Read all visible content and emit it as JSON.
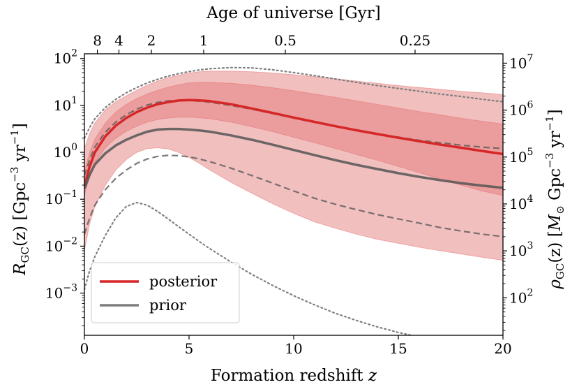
{
  "chart_data": {
    "type": "line",
    "title": "",
    "xlabel": "Formation redshift ",
    "xlabel_italic": "z",
    "x_top_label": "Age of universe [Gyr]",
    "ylabel_main": "(z) [Gpc",
    "ylabel_sym": "R",
    "ylabel_sub": "GC",
    "ylabel_exp": "−3",
    "ylabel_tail": " yr",
    "ylabel_tail_exp": "−1",
    "ylabel_close": "]",
    "y2label_sym": "ρ",
    "y2label_sub": "GC",
    "y2label_main": "(z) [",
    "y2label_msun": "M",
    "y2label_sun_sub": "⊙",
    "y2label_unit": " Gpc",
    "y2label_exp": "−3",
    "y2label_tail": " yr",
    "y2label_tail_exp": "−1",
    "y2label_close": "]",
    "xlim": [
      0,
      20
    ],
    "ylim_log10": [
      -3.9,
      2.1
    ],
    "y2_offset_log10": 5.1,
    "x_ticks": [
      0,
      5,
      10,
      15,
      20
    ],
    "x_tick_labels": [
      "0",
      "5",
      "10",
      "15",
      "20"
    ],
    "y_ticks_exp": [
      -3,
      -2,
      -1,
      0,
      1,
      2
    ],
    "y_tick_base": "10",
    "y_tick_exps": [
      "−3",
      "−2",
      "−1",
      "0",
      "1",
      "2"
    ],
    "y2_ticks_exp": [
      2,
      3,
      4,
      5,
      6,
      7
    ],
    "y2_tick_exps": [
      "2",
      "3",
      "4",
      "5",
      "6",
      "7"
    ],
    "top_ticks": [
      {
        "label": "8",
        "z": 0.62
      },
      {
        "label": "4",
        "z": 1.65
      },
      {
        "label": "2",
        "z": 3.2
      },
      {
        "label": "1",
        "z": 5.7
      },
      {
        "label": "0.5",
        "z": 9.6
      },
      {
        "label": "0.25",
        "z": 15.8
      }
    ],
    "legend": {
      "placement": "lower-left",
      "entries": [
        {
          "label": "posterior",
          "color": "#d62728"
        },
        {
          "label": "prior",
          "color": "#7f7f7f"
        }
      ]
    },
    "colors": {
      "posterior": "#d62728",
      "posterior_band": "#e68080",
      "prior": "#7f7f7f"
    },
    "x": [
      0,
      0.25,
      0.5,
      1,
      1.5,
      2,
      2.5,
      3,
      3.5,
      4,
      4.5,
      5,
      5.5,
      6,
      7,
      8,
      9,
      10,
      11,
      12,
      13,
      14,
      15,
      16,
      17,
      18,
      19,
      20
    ],
    "posterior_median": [
      0.19,
      0.5,
      1.0,
      2.2,
      3.7,
      5.4,
      7.2,
      9.0,
      10.6,
      11.8,
      12.7,
      13.0,
      12.8,
      12.3,
      10.6,
      8.6,
      6.9,
      5.5,
      4.45,
      3.6,
      2.95,
      2.45,
      2.05,
      1.72,
      1.46,
      1.25,
      1.07,
      0.92
    ],
    "posterior_inner_lo": [
      0.12,
      0.31,
      0.6,
      1.25,
      2.0,
      2.8,
      3.6,
      4.4,
      5.0,
      5.4,
      5.6,
      5.6,
      5.45,
      5.2,
      4.4,
      3.5,
      2.75,
      2.1,
      1.6,
      1.2,
      0.9,
      0.68,
      0.5,
      0.37,
      0.27,
      0.2,
      0.15,
      0.12
    ],
    "posterior_inner_hi": [
      0.4,
      1.0,
      1.9,
      4.2,
      7.2,
      10.5,
      14.0,
      17.5,
      21.0,
      24.5,
      27.5,
      30.0,
      31.0,
      31.0,
      29.5,
      27.0,
      23.8,
      20.5,
      17.5,
      14.8,
      12.5,
      10.5,
      8.8,
      7.4,
      6.3,
      5.3,
      4.6,
      4.0
    ],
    "posterior_outer_lo": [
      0.008,
      0.03,
      0.07,
      0.2,
      0.42,
      0.7,
      1.0,
      1.2,
      1.25,
      1.18,
      1.0,
      0.78,
      0.58,
      0.42,
      0.23,
      0.135,
      0.08,
      0.05,
      0.033,
      0.024,
      0.018,
      0.014,
      0.0115,
      0.0095,
      0.008,
      0.0068,
      0.0058,
      0.005
    ],
    "posterior_outer_hi": [
      1.2,
      2.5,
      4.2,
      8.0,
      12.0,
      16.0,
      21.0,
      27.0,
      33.0,
      39.0,
      44.0,
      49.0,
      52.0,
      54.0,
      54.0,
      52.0,
      49.0,
      45.0,
      41.0,
      37.0,
      33.0,
      29.5,
      26.5,
      24.0,
      22.0,
      20.0,
      18.5,
      17.0
    ],
    "prior_median": [
      0.17,
      0.33,
      0.55,
      0.95,
      1.4,
      1.85,
      2.3,
      2.75,
      3.05,
      3.15,
      3.15,
      3.05,
      2.92,
      2.75,
      2.3,
      1.85,
      1.45,
      1.12,
      0.87,
      0.68,
      0.54,
      0.44,
      0.36,
      0.3,
      0.255,
      0.22,
      0.195,
      0.175
    ],
    "prior_dashed_lo": [
      0.018,
      0.04,
      0.075,
      0.16,
      0.28,
      0.42,
      0.58,
      0.72,
      0.82,
      0.86,
      0.85,
      0.8,
      0.72,
      0.63,
      0.46,
      0.32,
      0.22,
      0.15,
      0.105,
      0.078,
      0.06,
      0.047,
      0.038,
      0.031,
      0.025,
      0.021,
      0.018,
      0.016
    ],
    "prior_dashed_hi": [
      0.32,
      0.7,
      1.3,
      2.7,
      4.4,
      6.3,
      8.3,
      10.2,
      11.6,
      12.5,
      12.8,
      12.7,
      12.3,
      11.7,
      10.0,
      8.3,
      6.7,
      5.4,
      4.35,
      3.55,
      2.95,
      2.45,
      2.1,
      1.8,
      1.6,
      1.42,
      1.29,
      1.2
    ],
    "prior_dotted_lo": [
      0.0012,
      0.003,
      0.006,
      0.017,
      0.04,
      0.07,
      0.085,
      0.075,
      0.055,
      0.038,
      0.026,
      0.018,
      0.0125,
      0.0088,
      0.0046,
      0.0025,
      0.00145,
      0.00088,
      0.00056,
      0.00037,
      0.00026,
      0.00019,
      0.000145,
      0.000115,
      9.4e-05,
      7.8e-05,
      6.7e-05,
      5.8e-05
    ],
    "prior_dotted_hi": [
      2.0,
      3.4,
      5.2,
      9.0,
      13.5,
      18.5,
      24.0,
      30.0,
      36.0,
      42.0,
      47.5,
      52.5,
      57.0,
      60.5,
      64.0,
      63.0,
      57.5,
      50.0,
      43.0,
      36.5,
      31.0,
      26.5,
      23.0,
      20.0,
      17.5,
      15.5,
      13.5,
      12.0
    ]
  }
}
